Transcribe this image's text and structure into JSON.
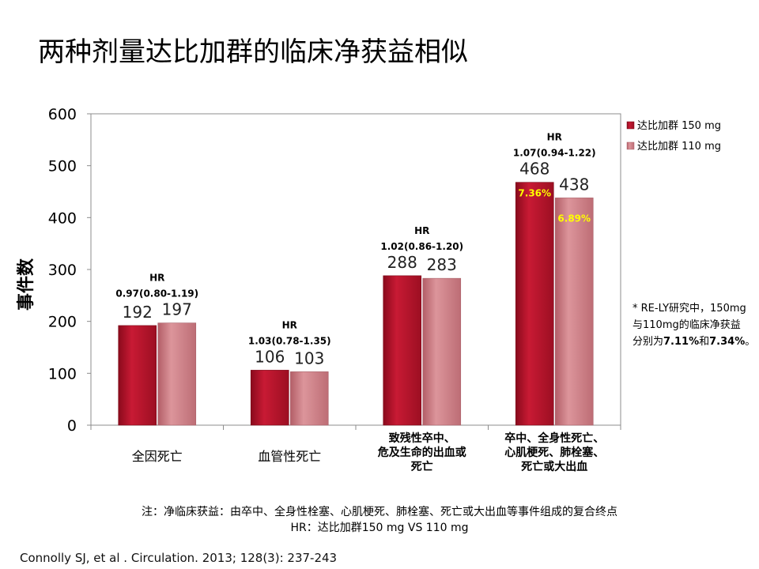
{
  "title": "两种剂量达比加群的临床净获益相似",
  "chart_data": {
    "type": "bar",
    "categories": [
      [
        "全因死亡"
      ],
      [
        "血管性死亡"
      ],
      [
        "致残性卒中、",
        "危及生命的出血或",
        "死亡"
      ],
      [
        "卒中、全身性死亡、",
        "心肌梗死、肺栓塞、",
        "死亡或大出血"
      ]
    ],
    "series": [
      {
        "name": "达比加群 150 mg",
        "values": [
          192,
          106,
          288,
          468
        ],
        "color": "#b8142c"
      },
      {
        "name": "达比加群 110 mg",
        "values": [
          197,
          103,
          283,
          438
        ],
        "color": "#cf7e85"
      }
    ],
    "hr_labels": [
      {
        "label": "HR",
        "value": "0.97(0.80-1.19)"
      },
      {
        "label": "HR",
        "value": "1.03(0.78-1.35)"
      },
      {
        "label": "HR",
        "value": "1.02(0.86-1.20)"
      },
      {
        "label": "HR",
        "value": "1.07(0.94-1.22)"
      }
    ],
    "percent_labels": [
      {
        "category_index": 3,
        "series_index": 0,
        "text": "7.36%"
      },
      {
        "category_index": 3,
        "series_index": 1,
        "text": "6.89%"
      }
    ],
    "percent_label_color": "#ffff00",
    "ylabel": "事件数",
    "ylim": [
      0,
      600
    ],
    "yticks": [
      0,
      100,
      200,
      300,
      400,
      500,
      600
    ],
    "legend_position": "top-right",
    "grid": false
  },
  "side_note": {
    "line1": "* RE-LY研究中，150mg",
    "line2": "与110mg的临床净获益",
    "line3_prefix": "分别为",
    "line3_bold1": "7.11%",
    "line3_mid": "和",
    "line3_bold2": "7.34%",
    "line3_suffix": "。"
  },
  "footnotes": {
    "note1": "注：净临床获益：由卒中、全身性栓塞、心肌梗死、肺栓塞、死亡或大出血等事件组成的复合终点",
    "note2": "HR：达比加群150 mg VS 110 mg"
  },
  "citation": "Connolly SJ, et al . Circulation. 2013; 128(3): 237-243"
}
